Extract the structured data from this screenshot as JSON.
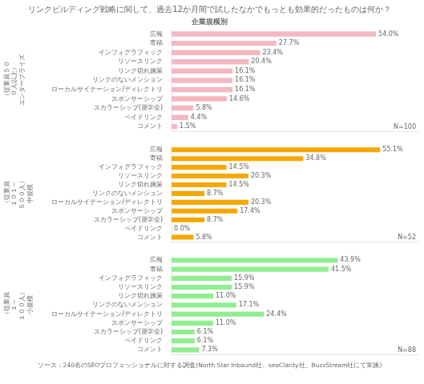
{
  "chart_data": [
    {
      "type": "bar",
      "orientation": "horizontal",
      "title": "リンクビルディング戦略に関して、過去12か月間で試したなかでもっとも効果的だったものは何か？",
      "subtitle": "企業規模別",
      "ylabel": "エンタープライズ",
      "ylabel_sub": "（従業員５０\n０人以上）",
      "annotation": "N=100",
      "categories": [
        "広報",
        "寄稿",
        "インフォグラフィック",
        "リソースリンク",
        "リンク切れ施策",
        "リンクのないメンション",
        "ローカルサイテーション/ディレクトリ",
        "スポンサーシップ",
        "スカラーシップ(奨学金)",
        "ペイドリンク",
        "コメント"
      ],
      "values": [
        54.0,
        27.7,
        23.4,
        20.4,
        16.1,
        16.1,
        16.1,
        14.6,
        5.8,
        4.4,
        1.5
      ],
      "value_labels": [
        "54.0%",
        "27.7%",
        "23.4%",
        "20.4%",
        "16.1%",
        "16.1%",
        "16.1%",
        "14.6%",
        "5.8%",
        "4.4%",
        "1.5%"
      ],
      "color": "#f4b8c1",
      "xlim": [
        0,
        65
      ],
      "grid": false,
      "data_labels": true,
      "tick_labels": "y"
    },
    {
      "type": "bar",
      "orientation": "horizontal",
      "ylabel": "中規模",
      "ylabel_sub": "（従業員\n１０１～\n５００人）",
      "annotation": "N=52",
      "categories": [
        "広報",
        "寄稿",
        "インフォグラフィック",
        "リソースリンク",
        "リンク切れ施策",
        "リンクのないメンション",
        "ローカルサイテーション/ディレクトリ",
        "スポンサーシップ",
        "スカラーシップ(奨学金)",
        "ペイドリンク",
        "コメント"
      ],
      "values": [
        55.1,
        34.8,
        14.5,
        20.3,
        14.5,
        8.7,
        20.3,
        17.4,
        8.7,
        0.0,
        5.8
      ],
      "value_labels": [
        "55.1%",
        "34.8%",
        "14.5%",
        "20.3%",
        "14.5%",
        "8.7%",
        "20.3%",
        "17.4%",
        "8.7%",
        "0.0%",
        "5.8%"
      ],
      "color": "#f5a800",
      "xlim": [
        0,
        65
      ],
      "grid": false,
      "data_labels": true,
      "tick_labels": "y"
    },
    {
      "type": "bar",
      "orientation": "horizontal",
      "ylabel": "小規模",
      "ylabel_sub": "（従業員\n１～\n１００人）",
      "annotation": "N=88",
      "footer": "ソース：240名のSEOプロフェッショナルに対する調査(North Star Inbound社、seoClarity社、BuzzStream社にて実施)",
      "categories": [
        "広報",
        "寄稿",
        "インフォグラフィック",
        "リソースリンク",
        "リンク切れ施策",
        "リンクのないメンション",
        "ローカルサイテーション/ディレクトリ",
        "スポンサーシップ",
        "スカラーシップ(奨学金)",
        "ペイドリンク",
        "コメント"
      ],
      "values": [
        43.9,
        41.5,
        15.9,
        15.9,
        11.0,
        17.1,
        24.4,
        11.0,
        6.1,
        6.1,
        7.3
      ],
      "value_labels": [
        "43.9%",
        "41.5%",
        "15.9%",
        "15.9%",
        "11.0%",
        "17.1%",
        "24.4%",
        "11.0%",
        "6.1%",
        "6.1%",
        "7.3%"
      ],
      "color": "#90ee90",
      "xlim": [
        0,
        65
      ],
      "grid": false,
      "data_labels": true,
      "tick_labels": "y"
    }
  ]
}
